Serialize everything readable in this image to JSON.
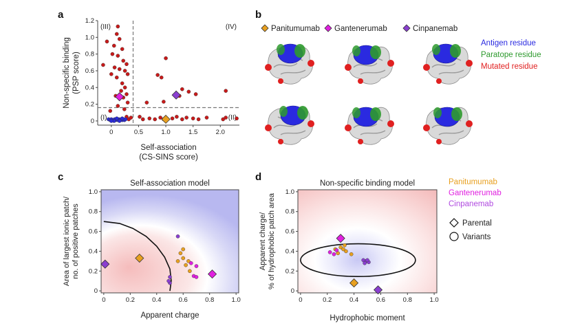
{
  "panels": {
    "a": {
      "letter": "a"
    },
    "b": {
      "letter": "b",
      "legend": [
        {
          "name": "Panitumumab",
          "color": "#e8a020"
        },
        {
          "name": "Gantenerumab",
          "color": "#e020e0"
        },
        {
          "name": "Cinpanemab",
          "color": "#8a3fd0"
        }
      ],
      "residue_legend": [
        {
          "label": "Antigen residue",
          "color": "#2a2ae0"
        },
        {
          "label": "Paratope residue",
          "color": "#2e9a2e"
        },
        {
          "label": "Mutated residue",
          "color": "#e02020"
        }
      ]
    },
    "c": {
      "letter": "c"
    },
    "d": {
      "letter": "d",
      "legend_names": [
        {
          "name": "Panitumumab",
          "color": "#e8a020"
        },
        {
          "name": "Gantenerumab",
          "color": "#e020e0"
        },
        {
          "name": "Cinpanemab",
          "color": "#b04ae0"
        }
      ],
      "marker_legend": [
        {
          "label": "Parental",
          "shape": "diamond"
        },
        {
          "label": "Variants",
          "shape": "circle"
        }
      ]
    }
  },
  "chart_data": [
    {
      "panel": "a",
      "type": "scatter",
      "title": "",
      "xlabel": "Self-association",
      "xlabel2": "(CS-SINS score)",
      "ylabel": "Non-specific binding",
      "ylabel2": "(PSP score)",
      "xlim": [
        -0.25,
        2.35
      ],
      "ylim": [
        -0.05,
        1.2
      ],
      "xticks": [
        "0",
        "0.5",
        "1.0",
        "1.5",
        "2.0"
      ],
      "xtick_values": [
        0,
        0.5,
        1.0,
        1.5,
        2.0
      ],
      "yticks": [
        "0",
        "0.2",
        "0.4",
        "0.6",
        "0.8",
        "1.0",
        "1.2"
      ],
      "ytick_values": [
        0,
        0.2,
        0.4,
        0.6,
        0.8,
        1.0,
        1.2
      ],
      "thresholds": {
        "x": 0.4,
        "y": 0.16
      },
      "quadrant_labels": [
        "(I)",
        "(II)",
        "(III)",
        "(IV)"
      ],
      "series": [
        {
          "color": "#c81a1a",
          "marker": "circle",
          "points": [
            [
              0.12,
              1.13
            ],
            [
              -0.08,
              0.95
            ],
            [
              0.1,
              1.04
            ],
            [
              0.15,
              0.98
            ],
            [
              0.05,
              0.9
            ],
            [
              0.2,
              0.86
            ],
            [
              0.02,
              0.8
            ],
            [
              0.12,
              0.78
            ],
            [
              0.22,
              0.72
            ],
            [
              0.28,
              0.68
            ],
            [
              -0.15,
              0.67
            ],
            [
              0.06,
              0.64
            ],
            [
              0.15,
              0.62
            ],
            [
              0.25,
              0.6
            ],
            [
              0.0,
              0.56
            ],
            [
              0.3,
              0.56
            ],
            [
              0.1,
              0.52
            ],
            [
              0.2,
              0.45
            ],
            [
              0.25,
              0.4
            ],
            [
              0.18,
              0.36
            ],
            [
              0.28,
              0.32
            ],
            [
              0.08,
              0.3
            ],
            [
              0.22,
              0.28
            ],
            [
              0.3,
              0.22
            ],
            [
              0.12,
              0.18
            ],
            [
              0.24,
              0.14
            ],
            [
              -0.02,
              0.12
            ],
            [
              0.28,
              0.05
            ],
            [
              0.32,
              0.02
            ],
            [
              0.36,
              0.04
            ],
            [
              0.52,
              0.05
            ],
            [
              0.58,
              0.02
            ],
            [
              0.7,
              0.03
            ],
            [
              0.8,
              0.02
            ],
            [
              0.9,
              0.04
            ],
            [
              0.96,
              0.02
            ],
            [
              1.12,
              0.03
            ],
            [
              1.2,
              0.05
            ],
            [
              1.3,
              0.02
            ],
            [
              1.38,
              0.04
            ],
            [
              1.5,
              0.03
            ],
            [
              1.6,
              0.02
            ],
            [
              1.75,
              0.04
            ],
            [
              2.05,
              0.02
            ],
            [
              2.1,
              0.04
            ],
            [
              2.3,
              0.03
            ],
            [
              0.65,
              0.22
            ],
            [
              0.85,
              0.55
            ],
            [
              0.92,
              0.52
            ],
            [
              1.0,
              0.75
            ],
            [
              1.25,
              0.3
            ],
            [
              1.3,
              0.38
            ],
            [
              1.42,
              0.35
            ],
            [
              1.55,
              0.32
            ],
            [
              2.1,
              0.36
            ],
            [
              0.96,
              0.23
            ]
          ]
        },
        {
          "color": "#2a2ad8",
          "marker": "circle",
          "points": [
            [
              -0.05,
              0.02
            ],
            [
              -0.02,
              0.01
            ],
            [
              0.0,
              0.02
            ],
            [
              0.03,
              0.01
            ],
            [
              0.06,
              0.02
            ],
            [
              0.08,
              0.01
            ],
            [
              0.1,
              0.02
            ],
            [
              0.12,
              0.01
            ],
            [
              0.14,
              0.02
            ],
            [
              0.16,
              0.01
            ],
            [
              0.18,
              0.02
            ],
            [
              0.2,
              0.01
            ],
            [
              0.22,
              0.02
            ],
            [
              0.24,
              0.01
            ],
            [
              0.26,
              0.02
            ],
            [
              0.05,
              0.0
            ],
            [
              0.15,
              0.0
            ],
            [
              0.2,
              0.03
            ],
            [
              0.1,
              0.03
            ],
            [
              0.0,
              0.0
            ]
          ]
        },
        {
          "name": "Panitumumab",
          "color": "#e8a020",
          "marker": "diamond",
          "points": [
            [
              1.0,
              0.02
            ]
          ]
        },
        {
          "name": "Gantenerumab",
          "color": "#e020e0",
          "marker": "diamond",
          "points": [
            [
              0.15,
              0.29
            ]
          ]
        },
        {
          "name": "Cinpanemab",
          "color": "#8a3fd0",
          "marker": "diamond",
          "points": [
            [
              1.19,
              0.31
            ]
          ]
        }
      ]
    },
    {
      "panel": "c",
      "type": "scatter",
      "title": "Self-association model",
      "xlabel": "Apparent charge",
      "ylabel": "Area of largest ionic patch/",
      "ylabel2": "no. of positive patches",
      "xlim": [
        -0.02,
        1.02
      ],
      "ylim": [
        -0.02,
        1.02
      ],
      "xticks": [
        "0",
        "0.2",
        "0.4",
        "0.6",
        "0.8",
        "1.0"
      ],
      "xtick_values": [
        0,
        0.2,
        0.4,
        0.6,
        0.8,
        1.0
      ],
      "yticks": [
        "0",
        "0.2",
        "0.4",
        "0.6",
        "0.8",
        "1.0"
      ],
      "ytick_values": [
        0,
        0.2,
        0.4,
        0.6,
        0.8,
        1.0
      ],
      "boundary_points": [
        [
          0.0,
          0.7
        ],
        [
          0.12,
          0.68
        ],
        [
          0.22,
          0.63
        ],
        [
          0.32,
          0.55
        ],
        [
          0.4,
          0.45
        ],
        [
          0.46,
          0.34
        ],
        [
          0.5,
          0.22
        ],
        [
          0.51,
          0.1
        ],
        [
          0.5,
          0.0
        ]
      ],
      "series": [
        {
          "name": "Panitumumab",
          "color": "#e8a020",
          "marker": "circle",
          "points": [
            [
              0.6,
              0.42
            ],
            [
              0.58,
              0.38
            ],
            [
              0.6,
              0.33
            ],
            [
              0.56,
              0.3
            ],
            [
              0.64,
              0.3
            ],
            [
              0.62,
              0.26
            ],
            [
              0.65,
              0.2
            ]
          ]
        },
        {
          "name": "Gantenerumab",
          "color": "#e020e0",
          "marker": "circle",
          "points": [
            [
              0.7,
              0.25
            ],
            [
              0.68,
              0.15
            ],
            [
              0.7,
              0.14
            ],
            [
              0.66,
              0.28
            ]
          ]
        },
        {
          "name": "Cinpanemab",
          "color": "#8a3fd0",
          "marker": "circle",
          "points": [
            [
              0.56,
              0.55
            ],
            [
              0.5,
              0.14
            ],
            [
              0.5,
              0.08
            ],
            [
              0.49,
              0.1
            ]
          ]
        },
        {
          "name": "Panitumumab",
          "color": "#e8a020",
          "marker": "diamond",
          "points": [
            [
              0.27,
              0.33
            ]
          ]
        },
        {
          "name": "Gantenerumab",
          "color": "#e020e0",
          "marker": "diamond",
          "points": [
            [
              0.82,
              0.17
            ]
          ]
        },
        {
          "name": "Cinpanemab",
          "color": "#8a3fd0",
          "marker": "diamond",
          "points": [
            [
              0.01,
              0.27
            ]
          ]
        }
      ]
    },
    {
      "panel": "d",
      "type": "scatter",
      "title": "Non-specific binding model",
      "xlabel": "Hydrophobic moment",
      "ylabel": "Apparent charge/",
      "ylabel2": "% of hydrophobic patch area",
      "xlim": [
        -0.02,
        1.02
      ],
      "ylim": [
        -0.02,
        1.02
      ],
      "xticks": [
        "0",
        "0.2",
        "0.4",
        "0.6",
        "0.8",
        "1.0"
      ],
      "xtick_values": [
        0,
        0.2,
        0.4,
        0.6,
        0.8,
        1.0
      ],
      "yticks": [
        "0",
        "0.2",
        "0.4",
        "0.6",
        "0.8",
        "1.0"
      ],
      "ytick_values": [
        0,
        0.2,
        0.4,
        0.6,
        0.8,
        1.0
      ],
      "ellipse": {
        "cx": 0.43,
        "cy": 0.31,
        "rx": 0.43,
        "ry": 0.165
      },
      "series": [
        {
          "name": "Panitumumab",
          "color": "#e8a020",
          "marker": "circle",
          "points": [
            [
              0.26,
              0.42
            ],
            [
              0.3,
              0.44
            ],
            [
              0.33,
              0.46
            ],
            [
              0.38,
              0.37
            ],
            [
              0.34,
              0.4
            ],
            [
              0.28,
              0.38
            ],
            [
              0.32,
              0.42
            ]
          ]
        },
        {
          "name": "Gantenerumab",
          "color": "#e020e0",
          "marker": "circle",
          "points": [
            [
              0.22,
              0.39
            ],
            [
              0.25,
              0.37
            ],
            [
              0.27,
              0.41
            ]
          ]
        },
        {
          "name": "Cinpanemab",
          "color": "#8a3fd0",
          "marker": "circle",
          "points": [
            [
              0.47,
              0.31
            ],
            [
              0.49,
              0.3
            ],
            [
              0.51,
              0.29
            ],
            [
              0.48,
              0.28
            ],
            [
              0.5,
              0.31
            ]
          ]
        },
        {
          "name": "Panitumumab",
          "color": "#e8a020",
          "marker": "diamond",
          "points": [
            [
              0.4,
              0.08
            ]
          ]
        },
        {
          "name": "Gantenerumab",
          "color": "#e020e0",
          "marker": "diamond",
          "points": [
            [
              0.3,
              0.53
            ]
          ]
        },
        {
          "name": "Cinpanemab",
          "color": "#8a3fd0",
          "marker": "diamond",
          "points": [
            [
              0.58,
              0.01
            ]
          ]
        }
      ]
    }
  ]
}
